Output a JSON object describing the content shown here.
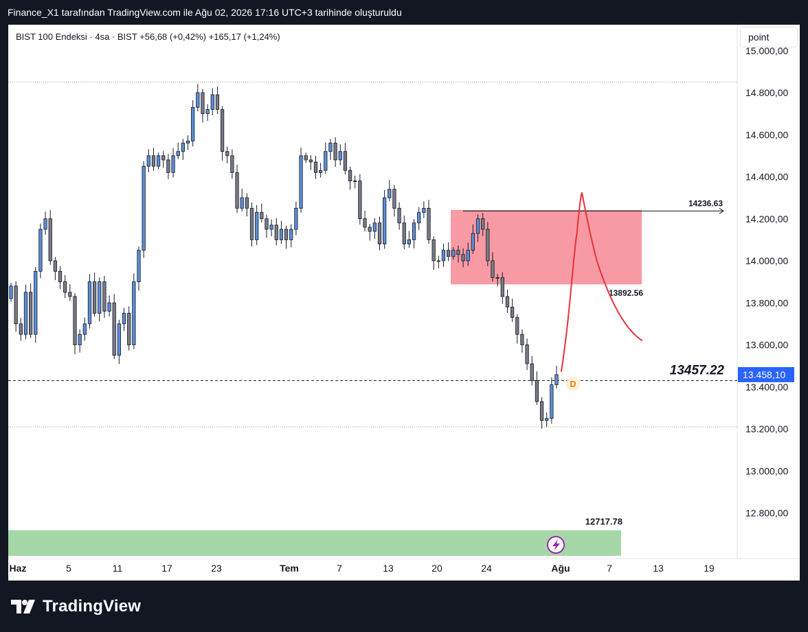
{
  "header": {
    "title": "Finance_X1 tarafından TradingView.com ile Ağu 02, 2026 17:16 UTC+3 tarihinde oluşturuldu"
  },
  "legend": {
    "text": "BIST 100 Endeksi · 4sa · BIST  +56,68 (+0,42%)  +165,17 (+1,24%)"
  },
  "toolbar": {
    "scale_label": "point"
  },
  "footer": {
    "brand": "TradingView"
  },
  "colors": {
    "up": "#5b8dd6",
    "down": "#787b86",
    "zone": "#f78f9a",
    "support": "#a5d6a7",
    "drawing": "#e8313a",
    "price_badge": "#2962ff"
  },
  "chart_data": {
    "type": "candlestick",
    "symbol": "BIST 100 Endeksi",
    "interval": "4sa",
    "exchange": "BIST",
    "ylim": [
      12650,
      15000
    ],
    "y_ticks": [
      {
        "value": 12800,
        "label": "12.800,00"
      },
      {
        "value": 13000,
        "label": "13.000,00"
      },
      {
        "value": 13200,
        "label": "13.200,00"
      },
      {
        "value": 13400,
        "label": "13.400,00"
      },
      {
        "value": 13600,
        "label": "13.600,00"
      },
      {
        "value": 13800,
        "label": "13.800,00"
      },
      {
        "value": 14000,
        "label": "14.000,00"
      },
      {
        "value": 14200,
        "label": "14.200,00"
      },
      {
        "value": 14400,
        "label": "14.400,00"
      },
      {
        "value": 14600,
        "label": "14.600,00"
      },
      {
        "value": 14800,
        "label": "14.800,00"
      },
      {
        "value": 15000,
        "label": "15.000,00"
      }
    ],
    "x_labels": [
      {
        "label": "Haz",
        "bold": true
      },
      {
        "label": "5",
        "bold": false
      },
      {
        "label": "11",
        "bold": false
      },
      {
        "label": "17",
        "bold": false
      },
      {
        "label": "23",
        "bold": false
      },
      {
        "label": "Tem",
        "bold": true
      },
      {
        "label": "7",
        "bold": false
      },
      {
        "label": "13",
        "bold": false
      },
      {
        "label": "20",
        "bold": false
      },
      {
        "label": "24",
        "bold": false
      },
      {
        "label": "Ağu",
        "bold": true
      },
      {
        "label": "7",
        "bold": false
      },
      {
        "label": "13",
        "bold": false
      },
      {
        "label": "19",
        "bold": false
      }
    ],
    "closes": [
      13880,
      13700,
      13650,
      13850,
      13650,
      13950,
      14150,
      14200,
      14000,
      13950,
      13900,
      13850,
      13830,
      13600,
      13650,
      13700,
      13900,
      13750,
      13900,
      13760,
      13800,
      13550,
      13700,
      13750,
      13600,
      13900,
      14050,
      14450,
      14500,
      14450,
      14500,
      14480,
      14420,
      14500,
      14520,
      14560,
      14570,
      14730,
      14800,
      14700,
      14720,
      14790,
      14720,
      14520,
      14500,
      14420,
      14250,
      14300,
      14250,
      14100,
      14230,
      14200,
      14150,
      14170,
      14100,
      14150,
      14100,
      14150,
      14250,
      14500,
      14480,
      14470,
      14420,
      14430,
      14520,
      14560,
      14480,
      14520,
      14430,
      14380,
      14380,
      14200,
      14160,
      14140,
      14180,
      14080,
      14300,
      14340,
      14250,
      14180,
      14080,
      14100,
      14180,
      14230,
      14250,
      14100,
      14000,
      14000,
      14050,
      14020,
      14050,
      14030,
      14000,
      14050,
      14130,
      14200,
      14150,
      14000,
      13920,
      13920,
      13830,
      13780,
      13730,
      13650,
      13600,
      13510,
      13430,
      13330,
      13240,
      13250,
      13410,
      13458.1
    ],
    "last_price": {
      "value": 13458.1,
      "label": "13.458,10"
    },
    "price_dash_line": 13430,
    "dotted_levels": [
      14850,
      13210
    ],
    "annotations": [
      {
        "kind": "resistance-zone",
        "low": 13892.56,
        "high": 14236.63,
        "label_top": "14236.63",
        "label_bottom": "13892.56"
      },
      {
        "kind": "support-zone",
        "low": 12600,
        "high": 12717.78,
        "label": "12717.78"
      },
      {
        "kind": "price-label",
        "value": 13457.22,
        "label": "13457.22"
      },
      {
        "kind": "dividend-marker",
        "label": "D"
      }
    ],
    "grid": false,
    "legend_position": "top-left"
  }
}
